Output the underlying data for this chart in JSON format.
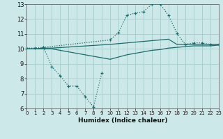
{
  "xlabel": "Humidex (Indice chaleur)",
  "xlim": [
    0,
    23
  ],
  "ylim": [
    6,
    13
  ],
  "yticks": [
    6,
    7,
    8,
    9,
    10,
    11,
    12,
    13
  ],
  "xticks": [
    0,
    1,
    2,
    3,
    4,
    5,
    6,
    7,
    8,
    9,
    10,
    11,
    12,
    13,
    14,
    15,
    16,
    17,
    18,
    19,
    20,
    21,
    22,
    23
  ],
  "bg_color": "#cce8e8",
  "grid_color": "#aacfcf",
  "line_color": "#1a6b6b",
  "line1_x": [
    0,
    1,
    2,
    10,
    11,
    12,
    13,
    14,
    15,
    16,
    17,
    18,
    19,
    20,
    21,
    22,
    23
  ],
  "line1_y": [
    10.05,
    10.05,
    10.1,
    10.6,
    11.1,
    12.25,
    12.4,
    12.5,
    13.0,
    13.0,
    12.25,
    11.05,
    10.3,
    10.4,
    10.4,
    10.3,
    10.3
  ],
  "line2_x": [
    0,
    1,
    2,
    3,
    10,
    11,
    12,
    13,
    14,
    15,
    16,
    17,
    18,
    19,
    20,
    21,
    22,
    23
  ],
  "line2_y": [
    10.0,
    10.0,
    10.05,
    10.05,
    10.3,
    10.35,
    10.4,
    10.45,
    10.5,
    10.55,
    10.6,
    10.65,
    10.3,
    10.3,
    10.3,
    10.3,
    10.3,
    10.3
  ],
  "line3_x": [
    0,
    1,
    2,
    3,
    10,
    11,
    12,
    13,
    14,
    15,
    16,
    17,
    18,
    19,
    20,
    21,
    22,
    23
  ],
  "line3_y": [
    10.0,
    10.0,
    10.0,
    10.0,
    9.3,
    9.45,
    9.6,
    9.7,
    9.8,
    9.9,
    9.95,
    10.05,
    10.1,
    10.15,
    10.2,
    10.2,
    10.2,
    10.25
  ],
  "line4_x": [
    2,
    3,
    4,
    5,
    6,
    7,
    8,
    9
  ],
  "line4_y": [
    10.1,
    8.8,
    8.2,
    7.5,
    7.5,
    6.8,
    6.1,
    8.4
  ]
}
